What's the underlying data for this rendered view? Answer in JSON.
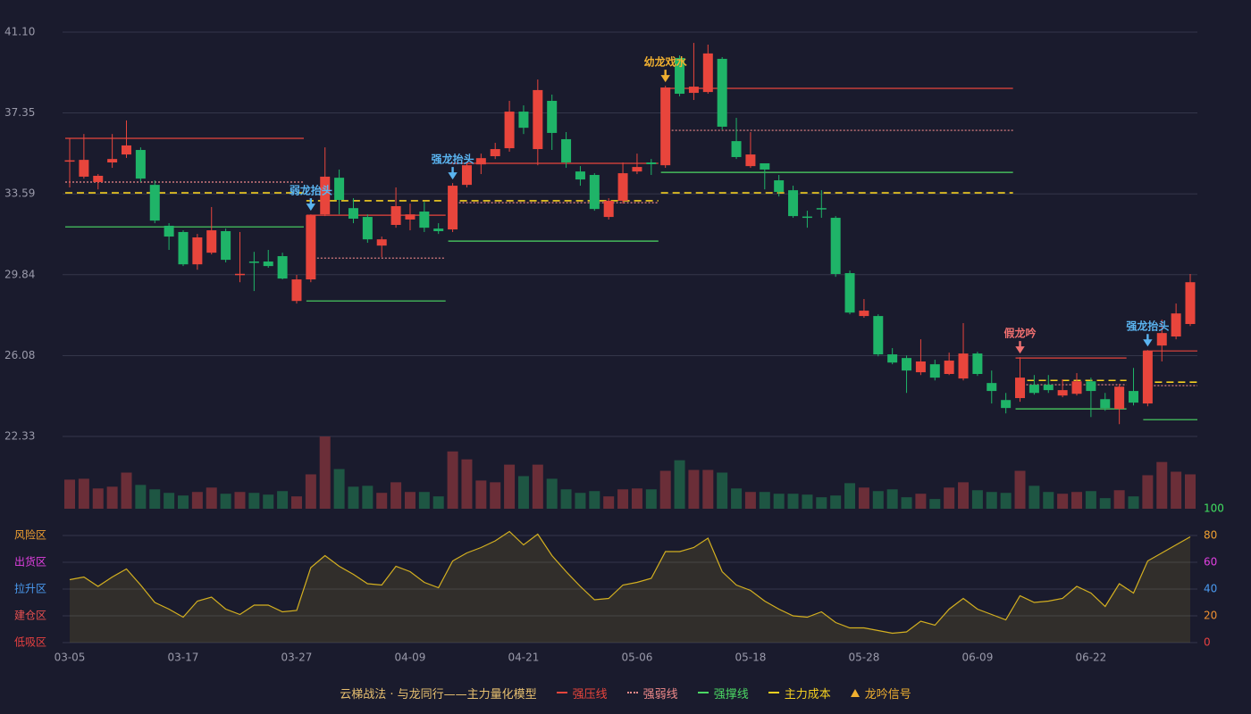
{
  "chart_data": {
    "type": "candlestick",
    "categories": [
      "03-05",
      null,
      null,
      null,
      null,
      null,
      null,
      null,
      "03-17",
      null,
      null,
      null,
      null,
      null,
      null,
      null,
      "03-27",
      null,
      null,
      null,
      null,
      null,
      null,
      null,
      "04-09",
      null,
      null,
      null,
      null,
      null,
      null,
      null,
      "04-21",
      null,
      null,
      null,
      null,
      null,
      null,
      null,
      "05-06",
      null,
      null,
      null,
      null,
      null,
      null,
      null,
      "05-18",
      null,
      null,
      null,
      null,
      null,
      null,
      null,
      "05-28",
      null,
      null,
      null,
      null,
      null,
      null,
      null,
      "06-09",
      null,
      null,
      null,
      null,
      null,
      null,
      null,
      "06-22",
      null,
      null,
      null,
      null,
      null,
      null,
      null
    ],
    "open": [
      35.1,
      34.39,
      34.14,
      35.05,
      35.42,
      35.63,
      34.01,
      32.11,
      31.82,
      30.32,
      30.86,
      31.86,
      29.87,
      30.45,
      30.45,
      30.7,
      28.62,
      29.62,
      32.64,
      34.34,
      32.93,
      32.52,
      31.19,
      32.15,
      32.4,
      32.77,
      31.98,
      31.94,
      34.01,
      34.96,
      35.34,
      35.71,
      37.41,
      35.67,
      37.91,
      36.13,
      34.63,
      34.47,
      32.52,
      33.27,
      34.63,
      35.05,
      34.92,
      39.9,
      38.28,
      38.32,
      39.86,
      36.04,
      34.88,
      35.01,
      34.22,
      33.76,
      32.54,
      32.93,
      32.48,
      29.91,
      27.92,
      27.92,
      26.14,
      25.97,
      25.31,
      25.68,
      25.23,
      25.02,
      26.18,
      24.81,
      24.02,
      24.11,
      24.73,
      24.73,
      24.23,
      24.31,
      24.89,
      24.06,
      23.61,
      24.44,
      23.86,
      26.55,
      26.97,
      27.55
    ],
    "high": [
      36.17,
      36.37,
      34.51,
      36.37,
      37.0,
      35.75,
      34.22,
      32.23,
      31.9,
      31.73,
      32.98,
      31.98,
      31.82,
      30.9,
      30.99,
      30.86,
      29.83,
      32.64,
      35.75,
      34.72,
      33.39,
      32.64,
      31.61,
      33.89,
      33.14,
      33.22,
      32.23,
      34.09,
      35.05,
      35.46,
      35.96,
      37.91,
      37.7,
      38.9,
      38.2,
      36.46,
      34.88,
      34.55,
      33.39,
      35.05,
      35.46,
      35.21,
      38.61,
      40.02,
      40.6,
      40.52,
      39.94,
      37.12,
      36.46,
      35.01,
      34.47,
      33.97,
      32.81,
      33.76,
      32.56,
      30.03,
      28.71,
      28.0,
      26.43,
      26.09,
      26.84,
      25.89,
      26.22,
      27.59,
      26.26,
      25.39,
      24.35,
      26.01,
      25.18,
      25.18,
      24.98,
      25.27,
      25.06,
      24.35,
      24.77,
      25.51,
      26.34,
      27.75,
      28.5,
      29.87
    ],
    "low": [
      33.89,
      34.3,
      33.8,
      34.8,
      35.26,
      34.14,
      32.23,
      30.99,
      30.24,
      30.07,
      30.78,
      30.41,
      29.49,
      29.08,
      30.16,
      29.62,
      28.5,
      29.49,
      32.56,
      32.64,
      32.23,
      31.32,
      30.65,
      32.02,
      31.9,
      31.82,
      31.73,
      31.82,
      33.89,
      34.51,
      35.21,
      35.55,
      36.37,
      34.92,
      35.63,
      34.8,
      33.97,
      32.81,
      32.4,
      33.14,
      34.51,
      34.47,
      34.8,
      38.12,
      37.95,
      38.24,
      36.58,
      35.21,
      34.8,
      33.8,
      33.47,
      32.48,
      32.02,
      32.48,
      29.74,
      28.0,
      27.84,
      26.05,
      25.68,
      24.35,
      25.18,
      24.93,
      25.18,
      24.93,
      25.14,
      23.86,
      23.4,
      23.94,
      24.27,
      24.35,
      24.15,
      24.23,
      23.23,
      23.52,
      22.9,
      23.77,
      23.73,
      25.81,
      26.84,
      27.46
    ],
    "close": [
      35.15,
      35.17,
      34.43,
      35.21,
      35.84,
      34.3,
      32.35,
      31.61,
      30.32,
      31.57,
      31.9,
      30.53,
      29.88,
      30.43,
      30.24,
      29.66,
      29.62,
      32.6,
      34.39,
      33.31,
      32.44,
      31.48,
      31.48,
      33.02,
      32.64,
      32.02,
      31.86,
      33.97,
      34.92,
      35.25,
      35.67,
      37.41,
      36.66,
      38.41,
      36.42,
      35.05,
      34.26,
      32.89,
      33.27,
      34.55,
      34.84,
      34.97,
      38.53,
      38.24,
      38.57,
      40.11,
      36.71,
      35.3,
      35.42,
      34.72,
      33.68,
      32.56,
      32.5,
      32.89,
      29.87,
      28.08,
      28.17,
      26.14,
      25.76,
      25.39,
      25.81,
      25.06,
      25.85,
      26.18,
      25.23,
      24.44,
      23.65,
      25.06,
      24.35,
      24.48,
      24.48,
      24.89,
      24.44,
      23.65,
      24.64,
      23.9,
      26.3,
      27.13,
      28.04,
      29.49
    ],
    "up_color": "#e8453c",
    "down_color": "#1fb468",
    "ylim": [
      22.33,
      41.1
    ],
    "yticks": [
      22.33,
      26.08,
      29.84,
      33.59,
      37.35,
      {
        "value": 41.1,
        "label": "41.10"
      }
    ],
    "grid": true,
    "volume": [
      33,
      34,
      23,
      25,
      41,
      27,
      22,
      18,
      15,
      19,
      24,
      17,
      19,
      18,
      16,
      20,
      14,
      39,
      82,
      45,
      25,
      26,
      18,
      30,
      19,
      19,
      14,
      65,
      56,
      32,
      30,
      50,
      37,
      50,
      34,
      22,
      18,
      20,
      14,
      22,
      23,
      22,
      43,
      55,
      44,
      44,
      41,
      23,
      19,
      19,
      17,
      17,
      16,
      13,
      15,
      29,
      24,
      20,
      22,
      13,
      17,
      11,
      24,
      30,
      21,
      19,
      18,
      43,
      26,
      19,
      17,
      19,
      20,
      12,
      21,
      14,
      38,
      53,
      42,
      39
    ],
    "volume_up_color": "#6b2e38",
    "volume_down_color": "#1e5643",
    "levels": [
      {
        "name": "强压线",
        "color": "#e8453c",
        "dash": "solid",
        "segments": [
          {
            "start": 0,
            "end": 16,
            "value": 36.17
          },
          {
            "start": 17,
            "end": 26,
            "value": 32.6
          },
          {
            "start": 27,
            "end": 41,
            "value": 35.01
          },
          {
            "start": 42,
            "end": 66,
            "value": 38.49
          },
          {
            "start": 67,
            "end": 74,
            "value": 25.97
          },
          {
            "start": 76,
            "end": 79,
            "value": 26.3
          }
        ]
      },
      {
        "name": "强弱线",
        "color": "#f08a8a",
        "dash": "dotted",
        "segments": [
          {
            "start": 0,
            "end": 16,
            "value": 34.14
          },
          {
            "start": 17,
            "end": 26,
            "value": 30.61
          },
          {
            "start": 27,
            "end": 41,
            "value": 33.18
          },
          {
            "start": 42,
            "end": 66,
            "value": 36.54
          },
          {
            "start": 67,
            "end": 74,
            "value": 24.73
          },
          {
            "start": 76,
            "end": 79,
            "value": 24.69
          }
        ]
      },
      {
        "name": "强撑线",
        "color": "#4cd964",
        "dash": "solid",
        "segments": [
          {
            "start": 0,
            "end": 16,
            "value": 32.06
          },
          {
            "start": 17,
            "end": 26,
            "value": 28.62
          },
          {
            "start": 27,
            "end": 41,
            "value": 31.4
          },
          {
            "start": 42,
            "end": 66,
            "value": 34.59
          },
          {
            "start": 67,
            "end": 74,
            "value": 23.61
          },
          {
            "start": 76,
            "end": 79,
            "value": 23.11
          }
        ]
      },
      {
        "name": "主力成本",
        "color": "#f5d020",
        "dash": "dashed",
        "segments": [
          {
            "start": 0,
            "end": 16,
            "value": 33.64
          },
          {
            "start": 17,
            "end": 26,
            "value": 33.27
          },
          {
            "start": 27,
            "end": 41,
            "value": 33.27
          },
          {
            "start": 42,
            "end": 66,
            "value": 33.64
          },
          {
            "start": 67,
            "end": 74,
            "value": 24.93
          },
          {
            "start": 76,
            "end": 79,
            "value": 24.85
          }
        ]
      }
    ],
    "signals": [
      {
        "index": 17,
        "label": "弱龙抬头",
        "color": "#5ab4f0"
      },
      {
        "index": 27,
        "label": "强龙抬头",
        "color": "#5ab4f0"
      },
      {
        "index": 42,
        "label": "幼龙戏水",
        "color": "#f0b030"
      },
      {
        "index": 67,
        "label": "假龙吟",
        "color": "#f07070"
      },
      {
        "index": 76,
        "label": "强龙抬头",
        "color": "#5ab4f0"
      }
    ],
    "signal_legend": {
      "name": "龙吟信号",
      "color": "#f0b030"
    },
    "indicator": {
      "values": [
        47,
        49,
        42,
        49,
        55,
        43,
        30,
        25,
        19,
        31,
        34,
        25,
        21,
        28,
        28,
        23,
        24,
        56,
        65,
        57,
        51,
        44,
        43,
        57,
        53,
        45,
        41,
        61,
        67,
        71,
        76,
        83,
        73,
        81,
        65,
        53,
        42,
        32,
        33,
        43,
        45,
        48,
        68,
        68,
        71,
        78,
        53,
        43,
        39,
        31,
        25,
        20,
        19,
        23,
        15,
        11,
        11,
        9,
        7,
        8,
        16,
        13,
        25,
        33,
        25,
        21,
        17,
        35,
        30,
        31,
        33,
        42,
        37,
        27,
        44,
        37,
        61,
        67,
        73,
        79
      ],
      "color": "#d4b020",
      "ylim": [
        0,
        100
      ],
      "yticks": [
        0,
        20,
        40,
        60,
        80,
        100
      ],
      "ytick_colors": [
        "#e84040",
        "#f09030",
        "#4a9af0",
        "#e040e0",
        "#f0a030",
        "#40e060"
      ],
      "zones": [
        {
          "label": "风险区",
          "value": 80,
          "color": "#f0a030"
        },
        {
          "label": "出货区",
          "value": 60,
          "color": "#e040e0"
        },
        {
          "label": "拉升区",
          "value": 40,
          "color": "#4a9af0"
        },
        {
          "label": "建仓区",
          "value": 20,
          "color": "#e85050"
        },
        {
          "label": "低吸区",
          "value": 0,
          "color": "#e84040"
        }
      ]
    },
    "legend_title": "云梯战法 · 与龙同行——主力量化模型"
  }
}
